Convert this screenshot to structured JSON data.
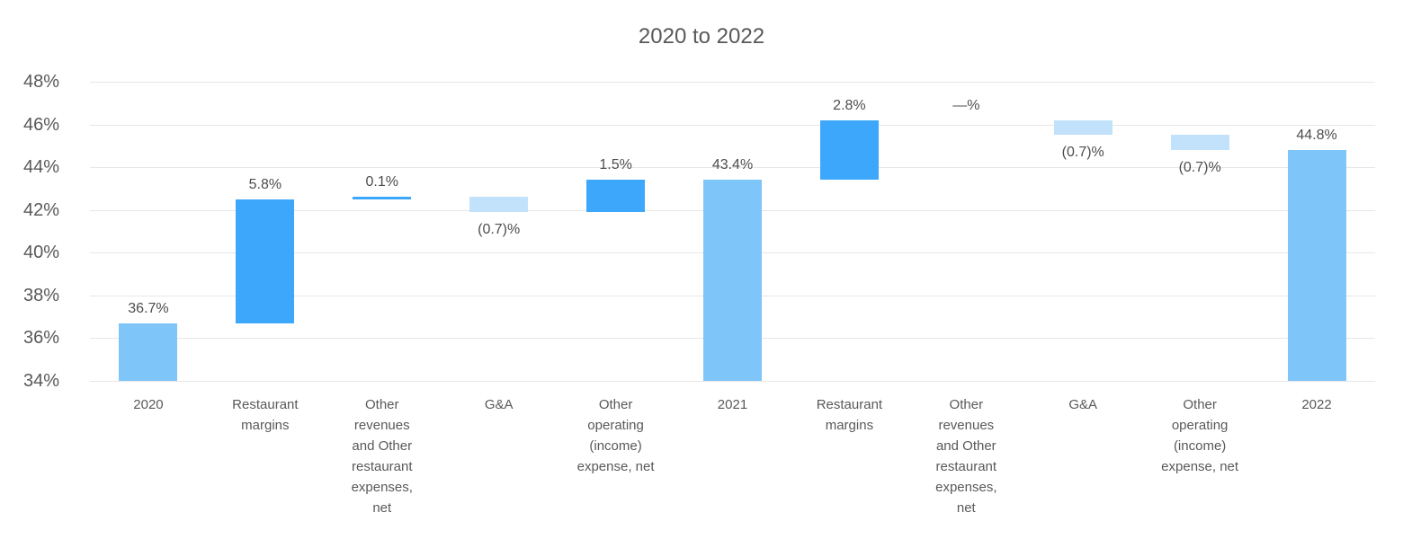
{
  "chart_data": {
    "type": "bar",
    "subtype": "waterfall",
    "title": "2020 to 2022",
    "xlabel": "",
    "ylabel": "",
    "ylim": [
      34,
      48
    ],
    "grid": true,
    "legend": false,
    "y_axis": {
      "min": 34,
      "max": 48,
      "step": 2,
      "unit": "%",
      "tick_labels": [
        "48%",
        "46%",
        "44%",
        "42%",
        "40%",
        "38%",
        "36%",
        "34%"
      ]
    },
    "categories": [
      "2020",
      "Restaurant margins",
      "Other revenues and Other restaurant expenses, net",
      "G&A",
      "Other operating (income) expense, net",
      "2021",
      "Restaurant margins",
      "Other revenues and Other restaurant expenses, net",
      "G&A",
      "Other operating (income) expense, net",
      "2022"
    ],
    "bars": [
      {
        "category": "2020",
        "category_lines": [
          "2020"
        ],
        "role": "total",
        "value": 36.7,
        "display": "36.7%",
        "start": 34,
        "end": 36.7,
        "label_side": "above"
      },
      {
        "category": "Restaurant margins",
        "category_lines": [
          "Restaurant",
          "margins"
        ],
        "role": "increase",
        "value": 5.8,
        "display": "5.8%",
        "start": 36.7,
        "end": 42.5,
        "label_side": "above"
      },
      {
        "category": "Other revenues and Other restaurant expenses, net",
        "category_lines": [
          "Other",
          "revenues",
          "and Other",
          "restaurant",
          "expenses,",
          "net"
        ],
        "role": "increase",
        "value": 0.1,
        "display": "0.1%",
        "start": 42.5,
        "end": 42.6,
        "label_side": "above"
      },
      {
        "category": "G&A",
        "category_lines": [
          "G&A"
        ],
        "role": "decrease",
        "value": -0.7,
        "display": "(0.7)%",
        "start": 42.6,
        "end": 41.9,
        "label_side": "below"
      },
      {
        "category": "Other operating (income) expense, net",
        "category_lines": [
          "Other",
          "operating",
          "(income)",
          "expense, net"
        ],
        "role": "increase",
        "value": 1.5,
        "display": "1.5%",
        "start": 41.9,
        "end": 43.4,
        "label_side": "above"
      },
      {
        "category": "2021",
        "category_lines": [
          "2021"
        ],
        "role": "total",
        "value": 43.4,
        "display": "43.4%",
        "start": 34,
        "end": 43.4,
        "label_side": "above"
      },
      {
        "category": "Restaurant margins",
        "category_lines": [
          "Restaurant",
          "margins"
        ],
        "role": "increase",
        "value": 2.8,
        "display": "2.8%",
        "start": 43.4,
        "end": 46.2,
        "label_side": "above"
      },
      {
        "category": "Other revenues and Other restaurant expenses, net",
        "category_lines": [
          "Other",
          "revenues",
          "and Other",
          "restaurant",
          "expenses,",
          "net"
        ],
        "role": "zero",
        "value": 0,
        "display": "—%",
        "start": 46.2,
        "end": 46.2,
        "label_side": "above"
      },
      {
        "category": "G&A",
        "category_lines": [
          "G&A"
        ],
        "role": "decrease",
        "value": -0.7,
        "display": "(0.7)%",
        "start": 46.2,
        "end": 45.5,
        "label_side": "below"
      },
      {
        "category": "Other operating (income) expense, net",
        "category_lines": [
          "Other",
          "operating",
          "(income)",
          "expense, net"
        ],
        "role": "decrease",
        "value": -0.7,
        "display": "(0.7)%",
        "start": 45.5,
        "end": 44.8,
        "label_side": "below"
      },
      {
        "category": "2022",
        "category_lines": [
          "2022"
        ],
        "role": "total",
        "value": 44.8,
        "display": "44.8%",
        "start": 34,
        "end": 44.8,
        "label_side": "above"
      }
    ],
    "colors": {
      "total": "#7ec6fa",
      "increase": "#3da8fb",
      "decrease": "#c2e2fc",
      "grid": "#e7e7e7",
      "axis_text": "#595959",
      "value_text": "#4d4d4d"
    }
  }
}
